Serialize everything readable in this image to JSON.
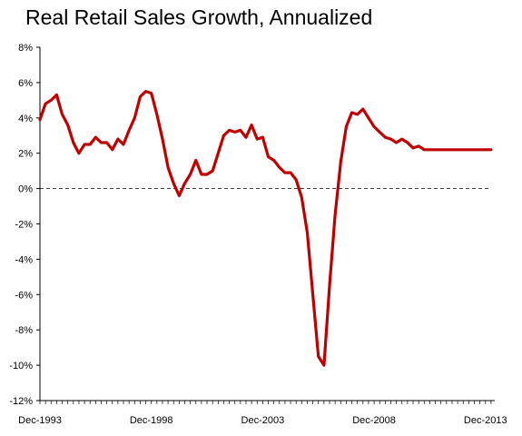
{
  "chart_data": {
    "type": "line",
    "title": "Real Retail Sales Growth, Annualized",
    "xlabel": "",
    "ylabel": "",
    "ylim": [
      -12,
      8
    ],
    "yticks": [
      8,
      6,
      4,
      2,
      0,
      -2,
      -4,
      -6,
      -8,
      -10,
      -12
    ],
    "ytick_labels": [
      "8%",
      "6%",
      "4%",
      "2%",
      "0%",
      "-2%",
      "-4%",
      "-6%",
      "-8%",
      "-10%",
      "-12%"
    ],
    "xlim": [
      "1993-12",
      "2014-05"
    ],
    "xtick_labels": [
      "Dec-1993",
      "Dec-1998",
      "Dec-2003",
      "Dec-2008",
      "Dec-2013"
    ],
    "grid": false,
    "reference_line": {
      "y": 0,
      "style": "dashed"
    },
    "line_color": "#C00000",
    "series": [
      {
        "name": "",
        "x": [
          "1993-12",
          "1994-03",
          "1994-06",
          "1994-09",
          "1994-12",
          "1995-03",
          "1995-06",
          "1995-09",
          "1995-12",
          "1996-03",
          "1996-06",
          "1996-09",
          "1996-12",
          "1997-03",
          "1997-06",
          "1997-09",
          "1997-12",
          "1998-03",
          "1998-06",
          "1998-09",
          "1998-12",
          "1999-03",
          "1999-06",
          "1999-09",
          "1999-12",
          "2000-03",
          "2000-06",
          "2000-09",
          "2000-12",
          "2001-03",
          "2001-06",
          "2001-09",
          "2001-12",
          "2002-03",
          "2002-06",
          "2002-09",
          "2002-12",
          "2003-03",
          "2003-06",
          "2003-09",
          "2003-12",
          "2004-03",
          "2004-06",
          "2004-09",
          "2004-12",
          "2005-03",
          "2005-06",
          "2005-09",
          "2005-12",
          "2006-03",
          "2006-06",
          "2006-09",
          "2006-12",
          "2007-03",
          "2007-06",
          "2007-09",
          "2007-12",
          "2008-03",
          "2008-06",
          "2008-09",
          "2008-12",
          "2009-03",
          "2009-06",
          "2009-09",
          "2009-12",
          "2010-03",
          "2010-06",
          "2010-09",
          "2010-12",
          "2011-03",
          "2011-06",
          "2011-09",
          "2011-12",
          "2012-03",
          "2012-06",
          "2012-09",
          "2012-12",
          "2013-03",
          "2013-06",
          "2013-09",
          "2013-12",
          "2014-03"
        ],
        "y": [
          3.9,
          4.8,
          5.0,
          5.3,
          4.2,
          3.6,
          2.6,
          2.0,
          2.5,
          2.5,
          2.9,
          2.6,
          2.6,
          2.2,
          2.8,
          2.5,
          3.3,
          4.0,
          5.2,
          5.5,
          5.4,
          4.2,
          2.8,
          1.2,
          0.3,
          -0.4,
          0.3,
          0.8,
          1.6,
          0.8,
          0.8,
          1.0,
          2.0,
          3.0,
          3.3,
          3.2,
          3.3,
          2.9,
          3.6,
          2.8,
          2.9,
          1.8,
          1.6,
          1.2,
          0.9,
          0.9,
          0.5,
          -0.5,
          -2.5,
          -6.0,
          -9.5,
          -10.0,
          -5.5,
          -1.5,
          1.5,
          3.5,
          4.3,
          4.2,
          4.5,
          4.0,
          3.5,
          3.2,
          2.9,
          2.8,
          2.6,
          2.8,
          2.6,
          2.3,
          2.4,
          2.2,
          2.2,
          2.2,
          2.2,
          2.2,
          2.2,
          2.2,
          2.2,
          2.2,
          2.2,
          2.2,
          2.2,
          2.2
        ]
      }
    ]
  }
}
